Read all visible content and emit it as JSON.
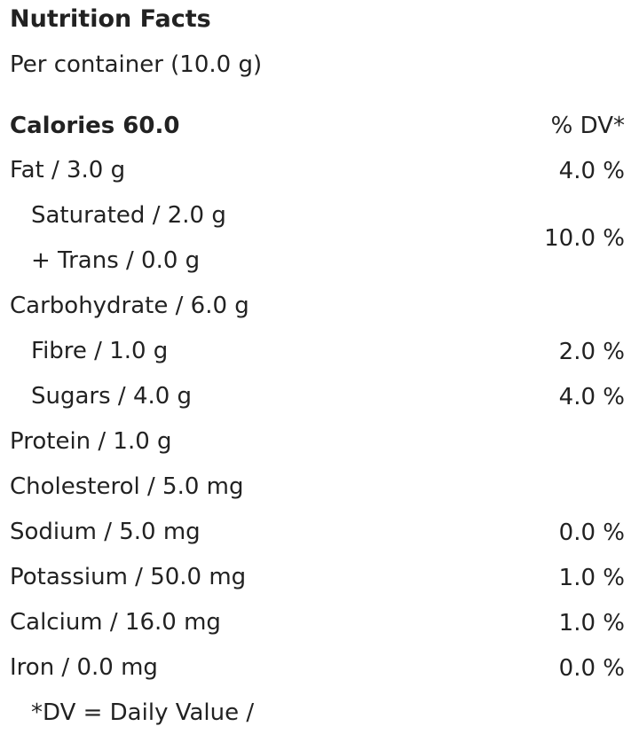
{
  "title": "Nutrition Facts",
  "serving": "Per container (10.0 g)",
  "calories": "Calories 60.0",
  "dv_header": "% DV*",
  "rows": [
    {
      "label": "Fat / 3.0 g",
      "dv": "4.0 %"
    },
    {
      "label": "Saturated / 2.0 g",
      "label2": "+ Trans / 0.0 g",
      "dv": "10.0 %",
      "indent": true
    },
    {
      "label": "Carbohydrate / 6.0 g"
    },
    {
      "label": "Fibre / 1.0 g",
      "dv": "2.0 %",
      "indent": true
    },
    {
      "label": "Sugars / 4.0 g",
      "dv": "4.0 %",
      "indent": true
    },
    {
      "label": "Protein / 1.0 g"
    },
    {
      "label": "Cholesterol / 5.0 mg"
    },
    {
      "label": "Sodium / 5.0 mg",
      "dv": "0.0 %"
    },
    {
      "label": "Potassium / 50.0 mg",
      "dv": "1.0 %"
    },
    {
      "label": "Calcium / 16.0 mg",
      "dv": "1.0 %"
    },
    {
      "label": "Iron / 0.0 mg",
      "dv": "0.0 %"
    }
  ],
  "footnote": "*DV = Daily Value /"
}
